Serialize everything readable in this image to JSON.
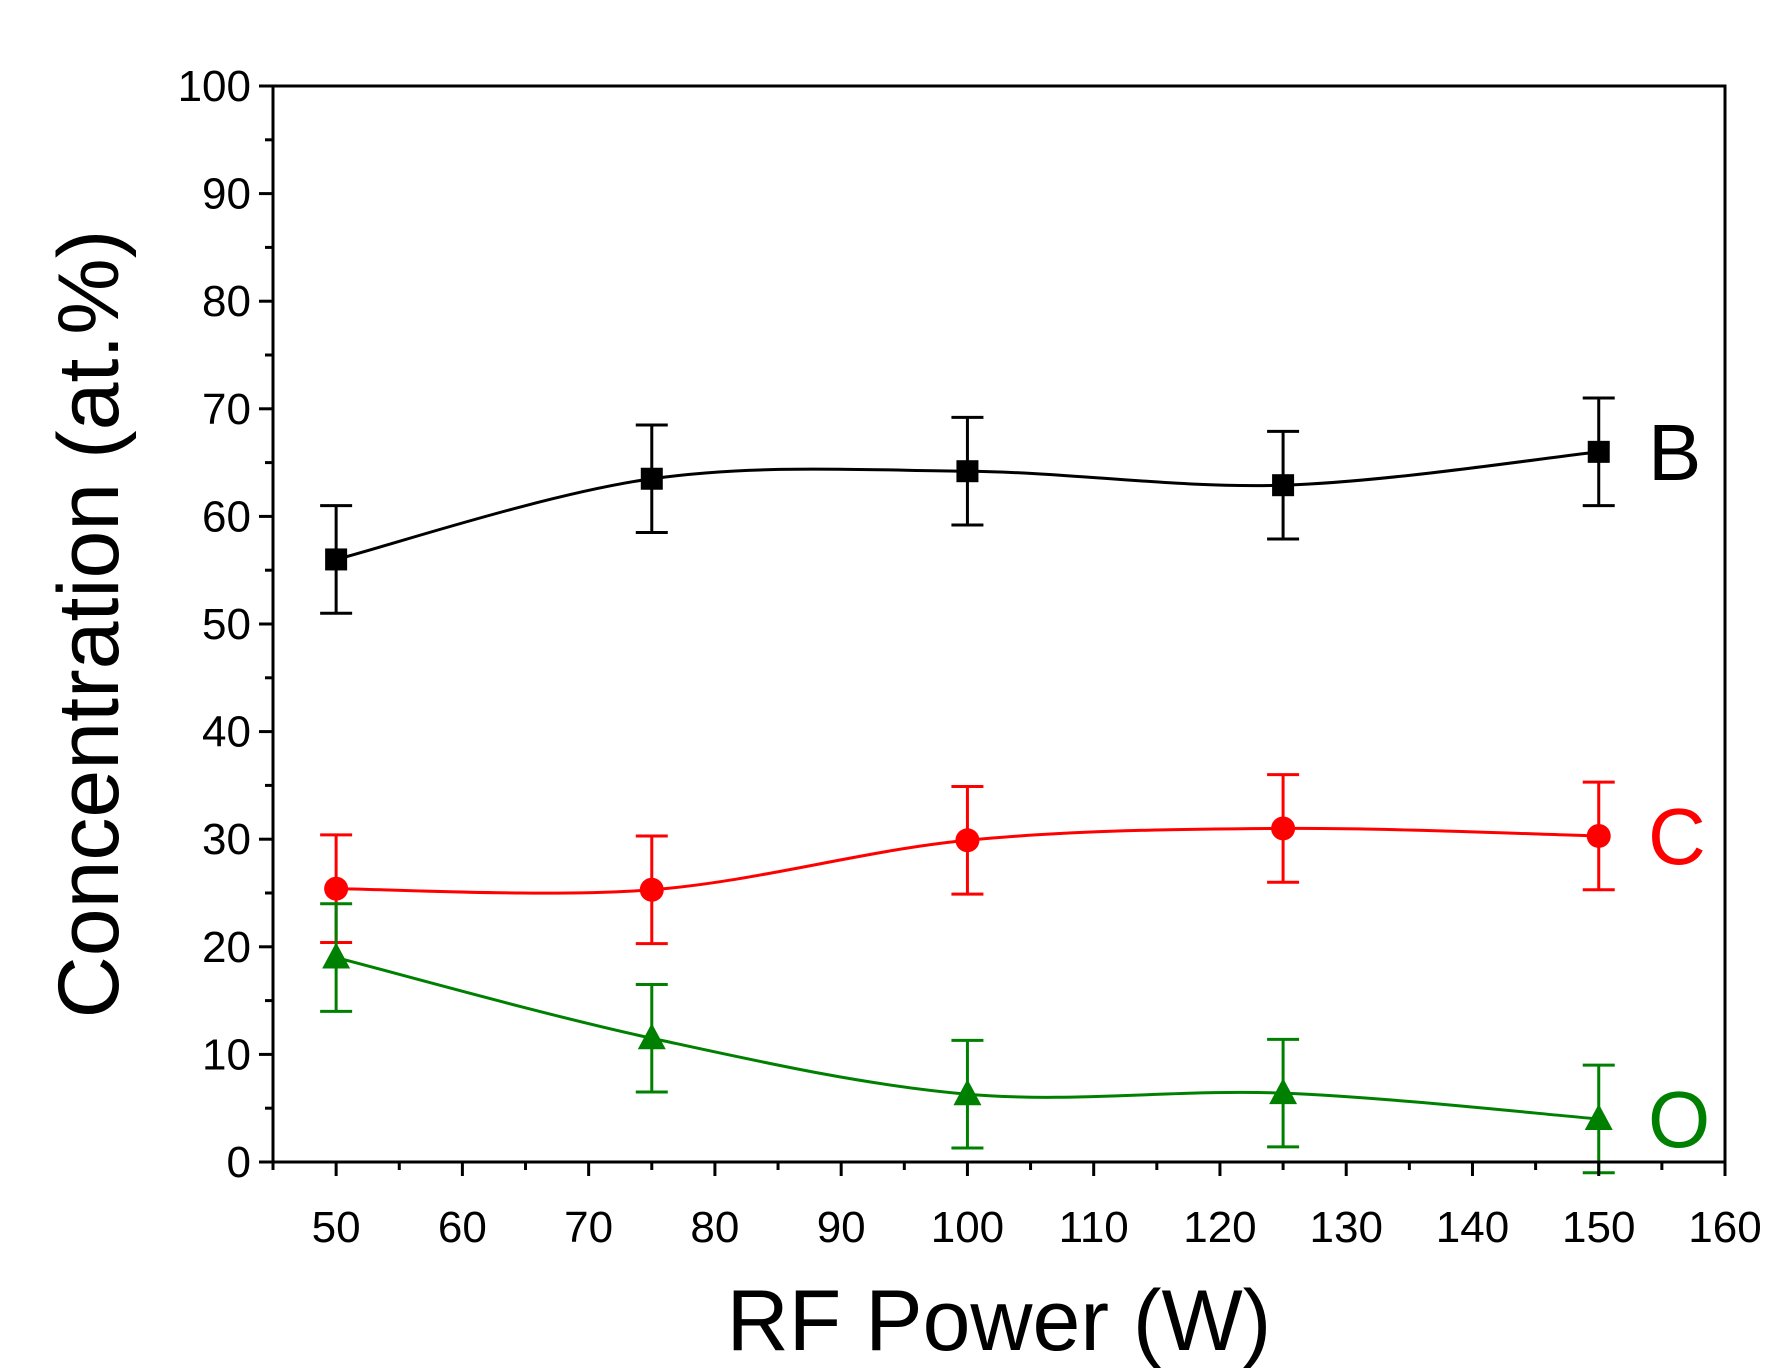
{
  "chart_data": {
    "type": "line",
    "title": "",
    "xlabel": "RF Power (W)",
    "ylabel": "Concentration (at.%)",
    "xlim": [
      45,
      160
    ],
    "ylim": [
      0,
      100
    ],
    "xticks": [
      50,
      60,
      70,
      80,
      90,
      100,
      110,
      120,
      130,
      140,
      150,
      160
    ],
    "yticks": [
      0,
      10,
      20,
      30,
      40,
      50,
      60,
      70,
      80,
      90,
      100
    ],
    "x": [
      50,
      75,
      100,
      125,
      150
    ],
    "series": [
      {
        "name": "B",
        "label": "B",
        "marker": "square",
        "color": "#000000",
        "values": [
          56,
          63.5,
          64.2,
          62.9,
          66
        ],
        "errors": [
          5,
          5,
          5,
          5,
          5
        ]
      },
      {
        "name": "C",
        "label": "C",
        "marker": "circle",
        "color": "#ff0000",
        "values": [
          25.4,
          25.3,
          29.9,
          31,
          30.3
        ],
        "errors": [
          5,
          5,
          5,
          5,
          5
        ]
      },
      {
        "name": "O",
        "label": "O",
        "marker": "triangle",
        "color": "#008000",
        "values": [
          19,
          11.5,
          6.3,
          6.4,
          4
        ],
        "errors": [
          5,
          5,
          5,
          5,
          5
        ]
      }
    ],
    "grid": false,
    "legend": "inline-right"
  }
}
